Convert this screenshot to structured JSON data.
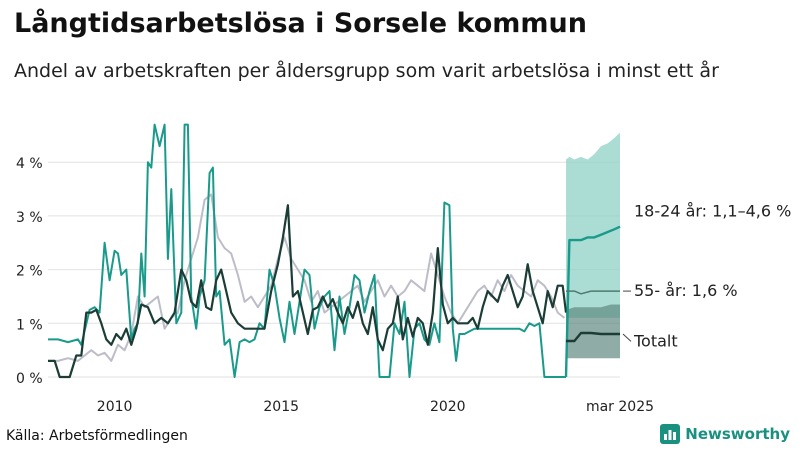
{
  "title": "Långtidsarbetslösa i Sorsele kommun",
  "subtitle": "Andel av arbetskraften per åldersgrupp som varit arbetslösa i minst ett år",
  "source": "Källa: Arbetsförmedlingen",
  "brand": {
    "name": "Newsworthy",
    "icon": "bar-chart-logo-icon",
    "color": "#1a9080"
  },
  "chart_data": {
    "type": "line",
    "title": "Långtidsarbetslösa i Sorsele kommun",
    "subtitle": "Andel av arbetskraften per åldersgrupp som varit arbetslösa i minst ett år",
    "xlabel": "",
    "ylabel": "",
    "y_unit": "%",
    "xlim": [
      2008.0,
      2025.17
    ],
    "ylim": [
      0,
      4.6
    ],
    "x_ticks": [
      {
        "value": 2010,
        "label": "2010"
      },
      {
        "value": 2015,
        "label": "2015"
      },
      {
        "value": 2020,
        "label": "2020"
      },
      {
        "value": 2025.17,
        "label": "mar 2025"
      }
    ],
    "y_ticks": [
      {
        "value": 0,
        "label": "0 %"
      },
      {
        "value": 1,
        "label": "1 %"
      },
      {
        "value": 2,
        "label": "2 %"
      },
      {
        "value": 3,
        "label": "3 %"
      },
      {
        "value": 4,
        "label": "4 %"
      }
    ],
    "grid": "horizontal",
    "forecast_start": 2023.55,
    "series": [
      {
        "name": "18-24 år",
        "color": "#1a9a8a",
        "label": "18-24 år: 1,1–4,6 %",
        "band_label": "18-24 år: 1,1–4,6 %",
        "band_color": "#8fd1c6",
        "x": [
          2008.0,
          2008.3,
          2008.6,
          2008.9,
          2009.0,
          2009.25,
          2009.4,
          2009.55,
          2009.7,
          2009.85,
          2010.0,
          2010.1,
          2010.2,
          2010.35,
          2010.5,
          2010.6,
          2010.7,
          2010.8,
          2010.9,
          2011.0,
          2011.1,
          2011.2,
          2011.35,
          2011.5,
          2011.6,
          2011.7,
          2011.85,
          2012.0,
          2012.1,
          2012.2,
          2012.3,
          2012.45,
          2012.55,
          2012.7,
          2012.85,
          2012.95,
          2013.05,
          2013.15,
          2013.3,
          2013.45,
          2013.6,
          2013.75,
          2013.9,
          2014.05,
          2014.2,
          2014.35,
          2014.5,
          2014.65,
          2014.8,
          2014.95,
          2015.1,
          2015.25,
          2015.4,
          2015.55,
          2015.7,
          2015.85,
          2016.0,
          2016.15,
          2016.3,
          2016.45,
          2016.6,
          2016.75,
          2016.9,
          2017.05,
          2017.2,
          2017.35,
          2017.5,
          2017.65,
          2017.8,
          2017.95,
          2018.1,
          2018.25,
          2018.4,
          2018.55,
          2018.7,
          2018.85,
          2019.0,
          2019.15,
          2019.3,
          2019.45,
          2019.6,
          2019.75,
          2019.9,
          2020.05,
          2020.15,
          2020.25,
          2020.35,
          2020.5,
          2020.65,
          2020.8,
          2020.95,
          2021.1,
          2021.25,
          2021.4,
          2021.55,
          2021.7,
          2021.85,
          2022.0,
          2022.15,
          2022.3,
          2022.45,
          2022.6,
          2022.75,
          2022.9,
          2023.05,
          2023.2,
          2023.35,
          2023.5,
          2023.55
        ],
        "y": [
          0.7,
          0.7,
          0.65,
          0.7,
          0.6,
          1.25,
          1.3,
          1.2,
          2.5,
          1.8,
          2.35,
          2.3,
          1.9,
          2.0,
          0.7,
          0.9,
          1.0,
          2.3,
          1.5,
          4.0,
          3.9,
          4.7,
          4.3,
          4.7,
          2.2,
          3.5,
          1.0,
          1.2,
          4.7,
          4.7,
          1.5,
          0.9,
          1.5,
          1.8,
          3.8,
          3.9,
          1.5,
          1.6,
          0.6,
          0.7,
          0.0,
          0.65,
          0.7,
          0.65,
          0.7,
          1.0,
          0.9,
          2.0,
          1.7,
          1.1,
          0.65,
          1.4,
          0.8,
          1.4,
          2.0,
          1.9,
          0.9,
          1.3,
          1.5,
          1.6,
          0.5,
          1.5,
          0.8,
          1.3,
          1.9,
          1.8,
          1.2,
          1.6,
          1.9,
          0.0,
          0.0,
          0.0,
          1.0,
          0.8,
          1.4,
          0.0,
          0.9,
          1.0,
          0.7,
          0.6,
          1.0,
          0.65,
          3.25,
          3.2,
          0.9,
          0.3,
          0.8,
          0.8,
          0.85,
          0.9,
          0.9,
          0.9,
          0.9,
          0.9,
          0.9,
          0.9,
          0.9,
          0.9,
          0.9,
          0.85,
          1.0,
          0.95,
          1.0,
          0.0,
          0.0,
          0.0,
          0.0,
          0.0,
          0.0
        ],
        "forecast_x": [
          2023.55,
          2023.65,
          2023.8,
          2024.0,
          2024.2,
          2024.4,
          2024.6,
          2024.8,
          2025.0,
          2025.17
        ],
        "forecast_y": [
          0.0,
          2.55,
          2.55,
          2.55,
          2.6,
          2.6,
          2.65,
          2.7,
          2.75,
          2.8
        ],
        "band_x": [
          2023.55,
          2023.65,
          2023.8,
          2024.0,
          2024.2,
          2024.4,
          2024.6,
          2024.8,
          2025.0,
          2025.17
        ],
        "band_low": [
          1.1,
          1.1,
          1.1,
          1.1,
          1.1,
          1.1,
          1.1,
          1.1,
          1.1,
          1.1
        ],
        "band_high": [
          4.05,
          4.1,
          4.05,
          4.1,
          4.05,
          4.15,
          4.3,
          4.35,
          4.45,
          4.55
        ]
      },
      {
        "name": "55- år",
        "color": "#bdbdc9",
        "label": "55- år: 1,6 %",
        "band_color": "#5f8a80",
        "x": [
          2008.0,
          2008.3,
          2008.6,
          2008.9,
          2009.1,
          2009.3,
          2009.5,
          2009.7,
          2009.9,
          2010.1,
          2010.3,
          2010.5,
          2010.7,
          2010.9,
          2011.1,
          2011.3,
          2011.5,
          2011.7,
          2011.9,
          2012.1,
          2012.3,
          2012.5,
          2012.7,
          2012.9,
          2013.1,
          2013.3,
          2013.5,
          2013.7,
          2013.9,
          2014.1,
          2014.3,
          2014.5,
          2014.7,
          2014.9,
          2015.1,
          2015.3,
          2015.5,
          2015.7,
          2015.9,
          2016.1,
          2016.3,
          2016.5,
          2016.7,
          2016.9,
          2017.1,
          2017.3,
          2017.5,
          2017.7,
          2017.9,
          2018.1,
          2018.3,
          2018.5,
          2018.7,
          2018.9,
          2019.1,
          2019.3,
          2019.5,
          2019.7,
          2019.9,
          2020.1,
          2020.3,
          2020.5,
          2020.7,
          2020.9,
          2021.1,
          2021.3,
          2021.5,
          2021.7,
          2021.9,
          2022.1,
          2022.3,
          2022.5,
          2022.7,
          2022.9,
          2023.1,
          2023.3,
          2023.5
        ],
        "y": [
          0.3,
          0.3,
          0.35,
          0.3,
          0.4,
          0.5,
          0.4,
          0.45,
          0.3,
          0.6,
          0.5,
          0.8,
          1.5,
          1.3,
          1.4,
          1.5,
          0.9,
          1.1,
          1.2,
          1.8,
          2.2,
          2.6,
          3.3,
          3.4,
          2.6,
          2.4,
          2.3,
          1.9,
          1.4,
          1.5,
          1.3,
          1.5,
          1.7,
          2.2,
          2.6,
          2.2,
          2.0,
          1.8,
          1.4,
          1.6,
          1.2,
          1.3,
          1.4,
          1.5,
          1.6,
          1.7,
          1.4,
          1.6,
          1.8,
          1.5,
          1.7,
          1.5,
          1.6,
          1.8,
          1.7,
          1.6,
          2.3,
          1.9,
          1.5,
          1.2,
          1.0,
          1.2,
          1.4,
          1.6,
          1.7,
          1.5,
          1.8,
          1.6,
          1.9,
          1.7,
          1.6,
          1.5,
          1.8,
          1.7,
          1.5,
          1.2,
          1.1
        ],
        "forecast_x": [
          2023.55,
          2023.8,
          2024.0,
          2024.3,
          2024.6,
          2024.9,
          2025.17
        ],
        "forecast_y": [
          1.6,
          1.6,
          1.55,
          1.6,
          1.6,
          1.6,
          1.6
        ],
        "band_x": [
          2023.55,
          2023.8,
          2024.0,
          2024.3,
          2024.6,
          2024.9,
          2025.17
        ],
        "band_low": [
          0.35,
          0.35,
          0.35,
          0.35,
          0.35,
          0.35,
          0.35
        ],
        "band_high": [
          1.25,
          1.3,
          1.3,
          1.3,
          1.3,
          1.35,
          1.35
        ]
      },
      {
        "name": "Totalt",
        "color": "#1c3d36",
        "label": "Totalt",
        "x": [
          2008.0,
          2008.2,
          2008.35,
          2008.5,
          2008.65,
          2008.85,
          2009.0,
          2009.15,
          2009.3,
          2009.45,
          2009.6,
          2009.75,
          2009.9,
          2010.05,
          2010.2,
          2010.35,
          2010.5,
          2010.65,
          2010.8,
          2011.0,
          2011.2,
          2011.4,
          2011.6,
          2011.8,
          2012.0,
          2012.15,
          2012.3,
          2012.45,
          2012.6,
          2012.75,
          2012.9,
          2013.05,
          2013.2,
          2013.35,
          2013.5,
          2013.7,
          2013.9,
          2014.1,
          2014.3,
          2014.5,
          2014.7,
          2014.9,
          2015.05,
          2015.2,
          2015.35,
          2015.5,
          2015.65,
          2015.8,
          2015.95,
          2016.1,
          2016.25,
          2016.4,
          2016.55,
          2016.7,
          2016.85,
          2017.0,
          2017.15,
          2017.3,
          2017.45,
          2017.6,
          2017.75,
          2017.9,
          2018.05,
          2018.2,
          2018.35,
          2018.5,
          2018.65,
          2018.8,
          2018.95,
          2019.1,
          2019.25,
          2019.4,
          2019.55,
          2019.7,
          2019.85,
          2020.0,
          2020.15,
          2020.3,
          2020.45,
          2020.6,
          2020.75,
          2020.9,
          2021.05,
          2021.2,
          2021.35,
          2021.5,
          2021.65,
          2021.8,
          2021.95,
          2022.1,
          2022.25,
          2022.4,
          2022.55,
          2022.7,
          2022.85,
          2023.0,
          2023.15,
          2023.3,
          2023.45,
          2023.55
        ],
        "y": [
          0.3,
          0.3,
          0.0,
          0.0,
          0.0,
          0.4,
          0.4,
          1.2,
          1.2,
          1.25,
          1.0,
          0.7,
          0.6,
          0.8,
          0.7,
          0.9,
          0.6,
          0.9,
          1.35,
          1.3,
          1.0,
          1.1,
          1.0,
          1.2,
          2.0,
          1.8,
          1.4,
          1.3,
          1.8,
          1.3,
          1.25,
          1.8,
          2.0,
          1.6,
          1.2,
          1.0,
          0.9,
          0.9,
          0.9,
          0.9,
          1.6,
          2.1,
          2.6,
          3.2,
          1.5,
          1.6,
          1.2,
          0.8,
          1.25,
          1.3,
          1.5,
          1.3,
          1.45,
          1.2,
          1.0,
          1.3,
          1.1,
          1.4,
          1.0,
          0.8,
          1.3,
          0.7,
          0.5,
          0.9,
          1.0,
          1.5,
          0.7,
          1.1,
          0.75,
          1.1,
          1.0,
          0.6,
          1.2,
          2.4,
          1.35,
          1.0,
          1.1,
          1.0,
          1.0,
          1.0,
          1.1,
          0.9,
          1.3,
          1.6,
          1.5,
          1.4,
          1.7,
          1.9,
          1.6,
          1.3,
          1.5,
          2.1,
          1.6,
          1.3,
          1.0,
          1.6,
          1.3,
          1.7,
          1.7,
          1.2
        ],
        "forecast_x": [
          2023.55,
          2023.8,
          2024.0,
          2024.3,
          2024.6,
          2024.9,
          2025.17
        ],
        "forecast_y": [
          0.67,
          0.67,
          0.82,
          0.82,
          0.8,
          0.8,
          0.8
        ]
      }
    ]
  }
}
